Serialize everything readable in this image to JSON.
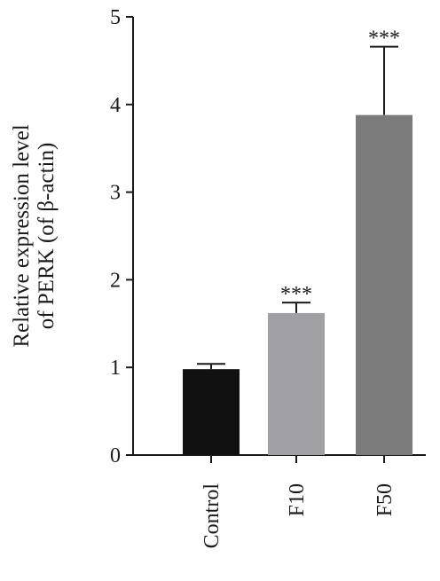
{
  "chart_data": {
    "type": "bar",
    "y_label_lines": [
      "Relative expression level",
      "of PERK (of β-actin)"
    ],
    "categories": [
      "Control",
      "F10",
      "F50"
    ],
    "values": [
      0.98,
      1.62,
      3.88
    ],
    "errors": [
      0.06,
      0.12,
      0.78
    ],
    "annotations": [
      null,
      "***",
      "***"
    ],
    "colors": [
      "#111111",
      "#a0a0a4",
      "#7b7b7b"
    ],
    "ylim": [
      0,
      5
    ],
    "yticks": [
      0,
      1,
      2,
      3,
      4,
      5
    ],
    "grid": false
  }
}
